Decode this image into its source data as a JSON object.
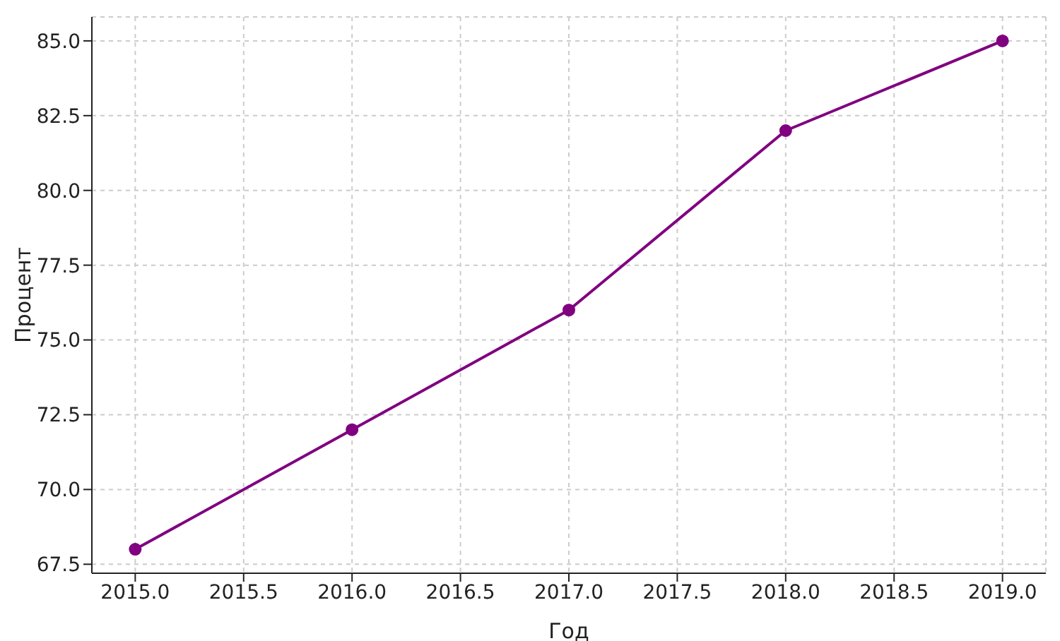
{
  "chart_data": {
    "type": "line",
    "xlabel": "Год",
    "ylabel": "Процент",
    "x": [
      2015,
      2016,
      2017,
      2018,
      2019
    ],
    "series": [
      {
        "color": "#800080",
        "values": [
          68,
          72,
          76,
          82,
          85
        ]
      }
    ],
    "xlim": [
      2014.8,
      2019.2
    ],
    "xticks": [
      {
        "value": 2015,
        "label": "2015.0"
      },
      {
        "value": 2015.5,
        "label": "2015.5"
      },
      {
        "value": 2016,
        "label": "2016.0"
      },
      {
        "value": 2016.5,
        "label": "2016.5"
      },
      {
        "value": 2017,
        "label": "2017.0"
      },
      {
        "value": 2017.5,
        "label": "2017.5"
      },
      {
        "value": 2018,
        "label": "2018.0"
      },
      {
        "value": 2018.5,
        "label": "2018.5"
      },
      {
        "value": 2019,
        "label": "2019.0"
      }
    ],
    "ylim": [
      67.2,
      85.8
    ],
    "yticks": [
      {
        "value": 67.5,
        "label": "67.5"
      },
      {
        "value": 70,
        "label": "70.0"
      },
      {
        "value": 72.5,
        "label": "72.5"
      },
      {
        "value": 75,
        "label": "75.0"
      },
      {
        "value": 77.5,
        "label": "77.5"
      },
      {
        "value": 80,
        "label": "80.0"
      },
      {
        "value": 82.5,
        "label": "82.5"
      },
      {
        "value": 85,
        "label": "85.0"
      }
    ],
    "grid": true,
    "marker": "circle",
    "line_style": "solid",
    "legend": false
  }
}
